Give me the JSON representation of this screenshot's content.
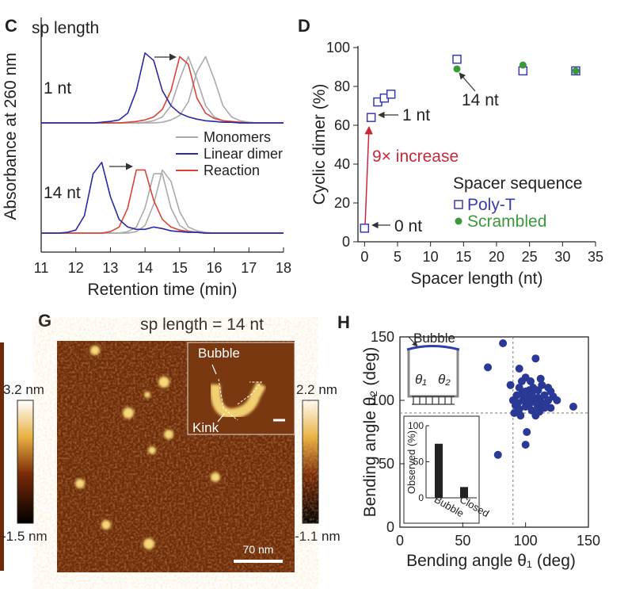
{
  "chart_data": [
    {
      "type": "line",
      "panel": "C",
      "title": "sp length",
      "label": "1 nt",
      "ylabel": "Absorbance at 260 nm",
      "x": [
        11,
        11.25,
        11.5,
        11.75,
        12,
        12.25,
        12.5,
        12.75,
        13,
        13.25,
        13.5,
        13.75,
        14,
        14.25,
        14.5,
        14.75,
        15,
        15.25,
        15.5,
        15.75,
        16,
        16.25,
        16.5,
        16.75,
        17,
        17.25,
        17.5,
        17.75,
        18
      ],
      "xlim": [
        11,
        18
      ],
      "ylim": [
        0,
        1
      ],
      "series": [
        {
          "color": "#aaaaaa",
          "values": [
            0.02,
            0.02,
            0.02,
            0.02,
            0.02,
            0.02,
            0.02,
            0.02,
            0.02,
            0.02,
            0.02,
            0.02,
            0.03,
            0.05,
            0.1,
            0.25,
            0.6,
            0.9,
            0.6,
            0.25,
            0.1,
            0.05,
            0.03,
            0.02,
            0.02,
            0.02,
            0.02,
            0.02,
            0.02
          ]
        },
        {
          "color": "#aaaaaa",
          "values": [
            0.02,
            0.02,
            0.02,
            0.02,
            0.02,
            0.02,
            0.02,
            0.02,
            0.02,
            0.02,
            0.02,
            0.02,
            0.02,
            0.02,
            0.03,
            0.06,
            0.12,
            0.3,
            0.7,
            0.9,
            0.6,
            0.25,
            0.1,
            0.05,
            0.03,
            0.02,
            0.02,
            0.02,
            0.02
          ]
        },
        {
          "color": "#d9433a",
          "values": [
            0.02,
            0.02,
            0.02,
            0.02,
            0.02,
            0.02,
            0.02,
            0.02,
            0.02,
            0.02,
            0.03,
            0.04,
            0.06,
            0.1,
            0.2,
            0.45,
            0.9,
            0.8,
            0.35,
            0.15,
            0.08,
            0.05,
            0.04,
            0.03,
            0.02,
            0.02,
            0.02,
            0.02,
            0.02
          ]
        },
        {
          "color": "#2a2aa0",
          "values": [
            0.02,
            0.02,
            0.02,
            0.02,
            0.02,
            0.02,
            0.02,
            0.03,
            0.04,
            0.06,
            0.15,
            0.45,
            0.95,
            0.85,
            0.45,
            0.25,
            0.15,
            0.1,
            0.07,
            0.05,
            0.04,
            0.03,
            0.03,
            0.02,
            0.02,
            0.02,
            0.02,
            0.02,
            0.02
          ]
        }
      ]
    },
    {
      "type": "line",
      "label": "14 nt",
      "xlabel": "Retention time (min)",
      "x": [
        11,
        11.25,
        11.5,
        11.75,
        12,
        12.25,
        12.5,
        12.75,
        13,
        13.25,
        13.5,
        13.75,
        14,
        14.25,
        14.5,
        14.75,
        15,
        15.25,
        15.5,
        15.75,
        16,
        16.25,
        16.5,
        16.75,
        17,
        17.25,
        17.5,
        17.75,
        18
      ],
      "xlim": [
        11,
        18
      ],
      "ylim": [
        0,
        1
      ],
      "xticks": [
        11,
        12,
        13,
        14,
        15,
        16,
        17,
        18
      ],
      "legend": [
        {
          "name": "Monomers",
          "color": "#aaaaaa"
        },
        {
          "name": "Linear dimer",
          "color": "#2a2aa0"
        },
        {
          "name": "Reaction",
          "color": "#d9433a"
        }
      ],
      "series": [
        {
          "color": "#aaaaaa",
          "values": [
            0.02,
            0.02,
            0.02,
            0.02,
            0.02,
            0.02,
            0.02,
            0.02,
            0.02,
            0.02,
            0.04,
            0.1,
            0.35,
            0.8,
            0.8,
            0.35,
            0.12,
            0.05,
            0.03,
            0.02,
            0.02,
            0.02,
            0.02,
            0.02,
            0.02,
            0.02,
            0.02,
            0.02,
            0.02
          ]
        },
        {
          "color": "#aaaaaa",
          "values": [
            0.02,
            0.02,
            0.02,
            0.02,
            0.02,
            0.02,
            0.02,
            0.02,
            0.02,
            0.02,
            0.02,
            0.04,
            0.12,
            0.4,
            0.85,
            0.7,
            0.3,
            0.1,
            0.05,
            0.03,
            0.02,
            0.02,
            0.02,
            0.02,
            0.02,
            0.02,
            0.02,
            0.02,
            0.02
          ]
        },
        {
          "color": "#d9433a",
          "values": [
            0.02,
            0.02,
            0.02,
            0.02,
            0.02,
            0.02,
            0.02,
            0.02,
            0.04,
            0.1,
            0.35,
            0.85,
            0.85,
            0.45,
            0.2,
            0.1,
            0.06,
            0.04,
            0.03,
            0.02,
            0.02,
            0.02,
            0.02,
            0.02,
            0.02,
            0.02,
            0.02,
            0.02,
            0.02
          ]
        },
        {
          "color": "#2a2aa0",
          "values": [
            0.02,
            0.02,
            0.02,
            0.03,
            0.06,
            0.25,
            0.8,
            0.95,
            0.5,
            0.2,
            0.1,
            0.07,
            0.07,
            0.1,
            0.08,
            0.05,
            0.04,
            0.03,
            0.03,
            0.02,
            0.02,
            0.02,
            0.02,
            0.02,
            0.02,
            0.02,
            0.02,
            0.02,
            0.02
          ]
        }
      ]
    },
    {
      "type": "scatter",
      "panel": "D",
      "xlabel": "Spacer length (nt)",
      "ylabel": "Cyclic dimer (%)",
      "xlim": [
        -1,
        35
      ],
      "ylim": [
        0,
        100
      ],
      "xticks": [
        0,
        5,
        10,
        15,
        20,
        25,
        30,
        35
      ],
      "yticks": [
        0,
        20,
        40,
        60,
        80,
        100
      ],
      "legend_title": "Spacer sequence",
      "series": [
        {
          "name": "Poly-T",
          "color": "#3a3ab0",
          "marker": "square",
          "x": [
            0,
            1,
            2,
            3,
            4,
            14,
            24,
            32
          ],
          "values": [
            7,
            64,
            72,
            74,
            76,
            94,
            88,
            88
          ]
        },
        {
          "name": "Scrambled",
          "color": "#3a9a3a",
          "marker": "circle",
          "x": [
            14,
            24,
            32
          ],
          "values": [
            89,
            91,
            88
          ]
        }
      ],
      "annotations": [
        {
          "text": "1 nt"
        },
        {
          "text": "14 nt"
        },
        {
          "text": "0 nt"
        },
        {
          "text": "9× increase",
          "color": "#c8283a"
        }
      ]
    },
    {
      "type": "scatter",
      "panel": "H",
      "xlabel": "Bending angle θ₁ (deg)",
      "ylabel": "Bending angle θ₂ (deg)",
      "xlim": [
        0,
        150
      ],
      "ylim": [
        0,
        150
      ],
      "xticks": [
        0,
        50,
        100,
        150
      ],
      "yticks": [
        0,
        50,
        100,
        150
      ],
      "reference_lines": {
        "x": 90,
        "y": 90
      },
      "inset_labels": [
        "Bubble",
        "θ₁",
        "θ₂"
      ],
      "series": [
        {
          "color": "#2a3896",
          "x": [
            82,
            70,
            95,
            108,
            100,
            112,
            88,
            95,
            100,
            105,
            110,
            115,
            120,
            98,
            103,
            107,
            112,
            118,
            122,
            92,
            95,
            100,
            105,
            110,
            115,
            108,
            96,
            102,
            106,
            113,
            90,
            93,
            97,
            104,
            118,
            125,
            138,
            100,
            78,
            101,
            110,
            99,
            94,
            116,
            120,
            109,
            103,
            111,
            91,
            97
          ],
          "values": [
            145,
            126,
            125,
            133,
            118,
            117,
            112,
            110,
            107,
            105,
            108,
            104,
            107,
            100,
            97,
            100,
            99,
            100,
            103,
            96,
            93,
            95,
            92,
            95,
            94,
            88,
            88,
            102,
            110,
            112,
            100,
            104,
            115,
            115,
            110,
            100,
            95,
            65,
            57,
            75,
            102,
            103,
            98,
            97,
            94,
            97,
            108,
            91,
            90,
            105
          ]
        }
      ]
    },
    {
      "type": "bar",
      "categories": [
        "Bubble",
        "Closed"
      ],
      "values": [
        75,
        15
      ],
      "ylim": [
        0,
        100
      ],
      "yticks": [
        0,
        50,
        100
      ],
      "ylabel": "Observed (%)",
      "color": "#222222"
    }
  ],
  "afm": {
    "panel": "G",
    "title": "sp length = 14 nt",
    "colorbar_left": {
      "max": "3.2 nm",
      "min": "-1.5 nm"
    },
    "colorbar_right": {
      "max": "2.2 nm",
      "min": "-1.1 nm"
    },
    "inset_labels": [
      "Bubble",
      "Kink"
    ],
    "scale_bar": "70 nm"
  }
}
